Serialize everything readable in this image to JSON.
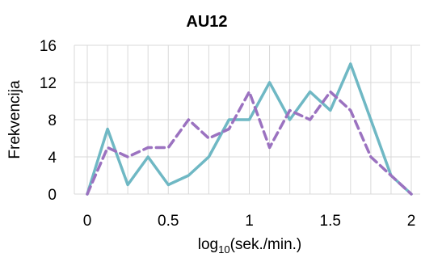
{
  "chart_data": {
    "type": "line",
    "title": "AU12",
    "ylabel": "Frekvencija",
    "xlabel_main": "log",
    "xlabel_sub": "10",
    "xlabel_rest": "(sek./min.)",
    "xlim": [
      0,
      2
    ],
    "ylim": [
      0,
      16
    ],
    "x_ticks": [
      0,
      0.5,
      1,
      1.5,
      2
    ],
    "x_tick_labels": [
      "0",
      "0.5",
      "1",
      "1.5",
      "2"
    ],
    "y_ticks": [
      0,
      4,
      8,
      12,
      16
    ],
    "y_tick_labels": [
      "0",
      "4",
      "8",
      "12",
      "16"
    ],
    "grid": true,
    "x": [
      0,
      0.125,
      0.25,
      0.375,
      0.5,
      0.625,
      0.75,
      0.875,
      1.0,
      1.125,
      1.25,
      1.375,
      1.5,
      1.625,
      1.75,
      1.875,
      2.0
    ],
    "series": [
      {
        "color": "#6fb8c4",
        "dash": "solid",
        "values": [
          0,
          7,
          1,
          4,
          1,
          2,
          4,
          8,
          8,
          12,
          8,
          11,
          9,
          14,
          8,
          2,
          0
        ]
      },
      {
        "color": "#9b72c0",
        "dash": "dashed",
        "values": [
          0,
          5,
          4,
          5,
          5,
          8,
          6,
          7,
          11,
          5,
          9,
          8,
          11,
          9,
          4,
          2,
          0
        ]
      }
    ]
  }
}
